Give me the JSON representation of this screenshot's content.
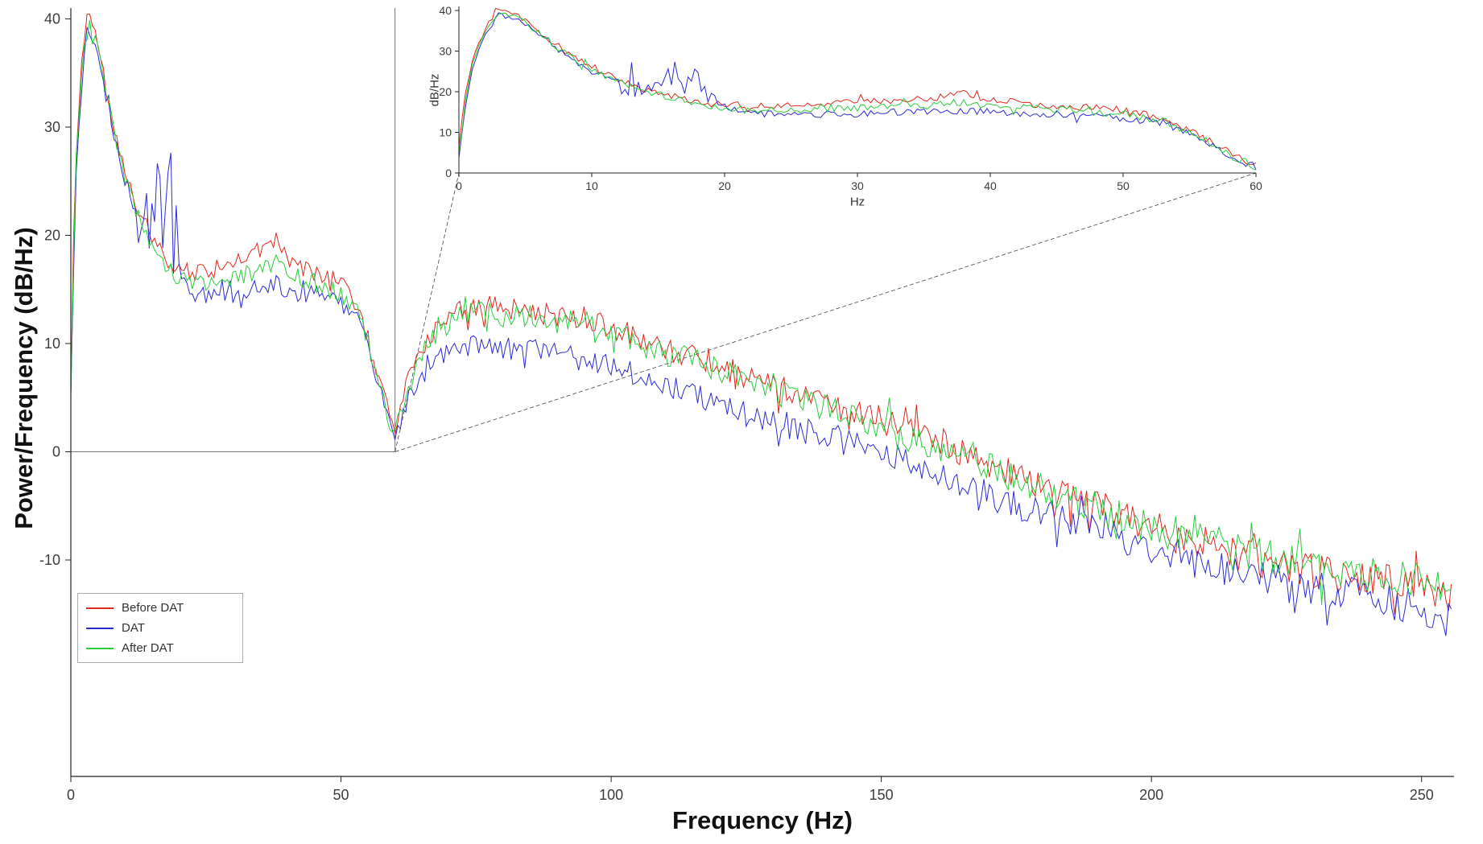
{
  "figure": {
    "background": "#ffffff",
    "axis_color": "#222222",
    "tick_text_color": "#3c3c3c",
    "zoom_box_color": "#666666",
    "connector_color": "#444444"
  },
  "chart_data": {
    "type": "line",
    "title": "",
    "main": {
      "xlabel": "Frequency (Hz)",
      "ylabel": "Power/Frequency (dB/Hz)",
      "xlim": [
        0,
        256
      ],
      "ylim": [
        -30,
        41
      ],
      "xticks": [
        0,
        50,
        100,
        150,
        200,
        250
      ],
      "yticks": [
        -10,
        0,
        10,
        20,
        30,
        40
      ],
      "grid": false
    },
    "inset": {
      "xlabel": "Hz",
      "ylabel": "dB/Hz",
      "xlim": [
        0,
        60
      ],
      "ylim": [
        0,
        41
      ],
      "xticks": [
        0,
        10,
        20,
        30,
        40,
        50,
        60
      ],
      "yticks": [
        0,
        10,
        20,
        30,
        40
      ],
      "grid": false
    },
    "zoom_box": {
      "x": [
        0,
        60
      ],
      "y_bottom": 0
    },
    "legend": {
      "position": "bottom-left",
      "entries": [
        "Before DAT",
        "DAT",
        "After DAT"
      ]
    },
    "noise": {
      "seed": 11,
      "base_amp": 0.7,
      "amp_slope": 0.004,
      "spike_prob": 0.07,
      "spike_gain": 2.2,
      "step_main": 0.5,
      "step_inset": 0.25
    },
    "series": [
      {
        "name": "Before DAT",
        "color": "#e0271d",
        "anchors": [
          [
            0,
            6
          ],
          [
            0.5,
            20
          ],
          [
            1,
            28
          ],
          [
            2,
            36
          ],
          [
            3,
            40
          ],
          [
            4,
            39.5
          ],
          [
            5,
            37.5
          ],
          [
            6,
            35
          ],
          [
            8,
            30
          ],
          [
            10,
            26
          ],
          [
            12,
            23
          ],
          [
            14,
            20.5
          ],
          [
            16,
            19
          ],
          [
            18,
            17.5
          ],
          [
            20,
            17
          ],
          [
            23,
            16.5
          ],
          [
            26,
            17
          ],
          [
            30,
            17.5
          ],
          [
            33,
            18
          ],
          [
            36,
            18.5
          ],
          [
            38,
            19.5
          ],
          [
            40,
            18
          ],
          [
            43,
            17
          ],
          [
            46,
            16.5
          ],
          [
            50,
            15.5
          ],
          [
            53,
            13.5
          ],
          [
            56,
            9
          ],
          [
            58,
            5
          ],
          [
            60,
            2
          ],
          [
            62,
            6
          ],
          [
            65,
            9.5
          ],
          [
            68,
            11.5
          ],
          [
            72,
            13
          ],
          [
            76,
            13.5
          ],
          [
            80,
            13.5
          ],
          [
            85,
            13
          ],
          [
            90,
            12.5
          ],
          [
            95,
            12.5
          ],
          [
            100,
            11.5
          ],
          [
            105,
            10.5
          ],
          [
            110,
            9.5
          ],
          [
            115,
            9
          ],
          [
            120,
            8
          ],
          [
            125,
            7
          ],
          [
            130,
            6
          ],
          [
            135,
            5.5
          ],
          [
            140,
            4.5
          ],
          [
            145,
            3.5
          ],
          [
            150,
            3
          ],
          [
            155,
            2
          ],
          [
            160,
            1
          ],
          [
            165,
            0
          ],
          [
            170,
            -1
          ],
          [
            175,
            -2
          ],
          [
            180,
            -3
          ],
          [
            185,
            -4
          ],
          [
            190,
            -5
          ],
          [
            195,
            -6
          ],
          [
            200,
            -7
          ],
          [
            205,
            -8
          ],
          [
            210,
            -8.5
          ],
          [
            215,
            -9.5
          ],
          [
            220,
            -10
          ],
          [
            225,
            -10.5
          ],
          [
            230,
            -11
          ],
          [
            235,
            -11.5
          ],
          [
            240,
            -12
          ],
          [
            245,
            -12
          ],
          [
            250,
            -12.5
          ],
          [
            255,
            -13
          ]
        ]
      },
      {
        "name": "DAT",
        "color": "#2b2bd5",
        "extra_noise": {
          "range": [
            12,
            20
          ],
          "amp": 2.2
        },
        "anchors": [
          [
            0,
            5
          ],
          [
            0.5,
            17
          ],
          [
            1,
            26
          ],
          [
            2,
            34.5
          ],
          [
            3,
            39
          ],
          [
            4,
            38.5
          ],
          [
            5,
            36.5
          ],
          [
            6,
            34
          ],
          [
            8,
            29
          ],
          [
            10,
            25
          ],
          [
            12,
            22.5
          ],
          [
            14,
            21
          ],
          [
            15,
            22
          ],
          [
            16,
            24
          ],
          [
            17,
            21
          ],
          [
            18,
            23.5
          ],
          [
            19,
            19
          ],
          [
            20,
            16
          ],
          [
            23,
            14.5
          ],
          [
            26,
            14.5
          ],
          [
            30,
            14.5
          ],
          [
            33,
            15
          ],
          [
            36,
            15
          ],
          [
            38,
            15.5
          ],
          [
            40,
            15
          ],
          [
            43,
            14.5
          ],
          [
            46,
            14.5
          ],
          [
            50,
            13.5
          ],
          [
            53,
            12.5
          ],
          [
            56,
            8
          ],
          [
            58,
            4
          ],
          [
            60,
            1.5
          ],
          [
            62,
            4.5
          ],
          [
            65,
            7
          ],
          [
            68,
            8.5
          ],
          [
            72,
            9.5
          ],
          [
            76,
            10
          ],
          [
            80,
            9.5
          ],
          [
            85,
            9.5
          ],
          [
            90,
            9
          ],
          [
            95,
            8.5
          ],
          [
            100,
            8
          ],
          [
            105,
            7
          ],
          [
            110,
            6
          ],
          [
            115,
            5.5
          ],
          [
            120,
            4.5
          ],
          [
            125,
            3.5
          ],
          [
            130,
            3
          ],
          [
            135,
            2
          ],
          [
            140,
            1.5
          ],
          [
            145,
            0.5
          ],
          [
            150,
            0
          ],
          [
            155,
            -1
          ],
          [
            160,
            -2
          ],
          [
            165,
            -3
          ],
          [
            170,
            -4
          ],
          [
            175,
            -5
          ],
          [
            180,
            -5.5
          ],
          [
            185,
            -6.5
          ],
          [
            190,
            -7.5
          ],
          [
            195,
            -8
          ],
          [
            200,
            -9
          ],
          [
            205,
            -9.5
          ],
          [
            210,
            -10.5
          ],
          [
            215,
            -11
          ],
          [
            220,
            -11.5
          ],
          [
            225,
            -12
          ],
          [
            230,
            -12.5
          ],
          [
            235,
            -13
          ],
          [
            240,
            -13.5
          ],
          [
            245,
            -14
          ],
          [
            250,
            -14.5
          ],
          [
            255,
            -15.5
          ]
        ]
      },
      {
        "name": "After DAT",
        "color": "#28cd3a",
        "anchors": [
          [
            0,
            5
          ],
          [
            0.5,
            18
          ],
          [
            1,
            27
          ],
          [
            2,
            35
          ],
          [
            3,
            39.5
          ],
          [
            4,
            39
          ],
          [
            5,
            37
          ],
          [
            6,
            34.5
          ],
          [
            8,
            29.5
          ],
          [
            10,
            25.5
          ],
          [
            12,
            22.5
          ],
          [
            14,
            20
          ],
          [
            16,
            18.5
          ],
          [
            18,
            17
          ],
          [
            20,
            16
          ],
          [
            23,
            15.5
          ],
          [
            26,
            15.5
          ],
          [
            30,
            16
          ],
          [
            33,
            16.5
          ],
          [
            36,
            17
          ],
          [
            38,
            17.5
          ],
          [
            40,
            16.5
          ],
          [
            43,
            16
          ],
          [
            46,
            15.5
          ],
          [
            50,
            14.5
          ],
          [
            53,
            13
          ],
          [
            56,
            8.5
          ],
          [
            58,
            4.5
          ],
          [
            60,
            1.5
          ],
          [
            62,
            5.5
          ],
          [
            65,
            9
          ],
          [
            68,
            11
          ],
          [
            72,
            12.5
          ],
          [
            76,
            13
          ],
          [
            80,
            12.5
          ],
          [
            85,
            12.5
          ],
          [
            90,
            12
          ],
          [
            95,
            12
          ],
          [
            100,
            11
          ],
          [
            105,
            10
          ],
          [
            110,
            9
          ],
          [
            115,
            8.5
          ],
          [
            120,
            7.5
          ],
          [
            125,
            6.5
          ],
          [
            130,
            5.5
          ],
          [
            135,
            5
          ],
          [
            140,
            4
          ],
          [
            145,
            3
          ],
          [
            150,
            2.5
          ],
          [
            155,
            1.5
          ],
          [
            160,
            0.5
          ],
          [
            165,
            -0.5
          ],
          [
            170,
            -1.5
          ],
          [
            175,
            -2.5
          ],
          [
            180,
            -3.5
          ],
          [
            185,
            -4.5
          ],
          [
            190,
            -5.5
          ],
          [
            195,
            -6.5
          ],
          [
            200,
            -7
          ],
          [
            205,
            -7.5
          ],
          [
            210,
            -8
          ],
          [
            215,
            -9
          ],
          [
            220,
            -9.5
          ],
          [
            225,
            -10
          ],
          [
            230,
            -10.5
          ],
          [
            235,
            -11
          ],
          [
            240,
            -11.5
          ],
          [
            245,
            -11.5
          ],
          [
            250,
            -12
          ],
          [
            255,
            -12.5
          ]
        ]
      }
    ]
  }
}
